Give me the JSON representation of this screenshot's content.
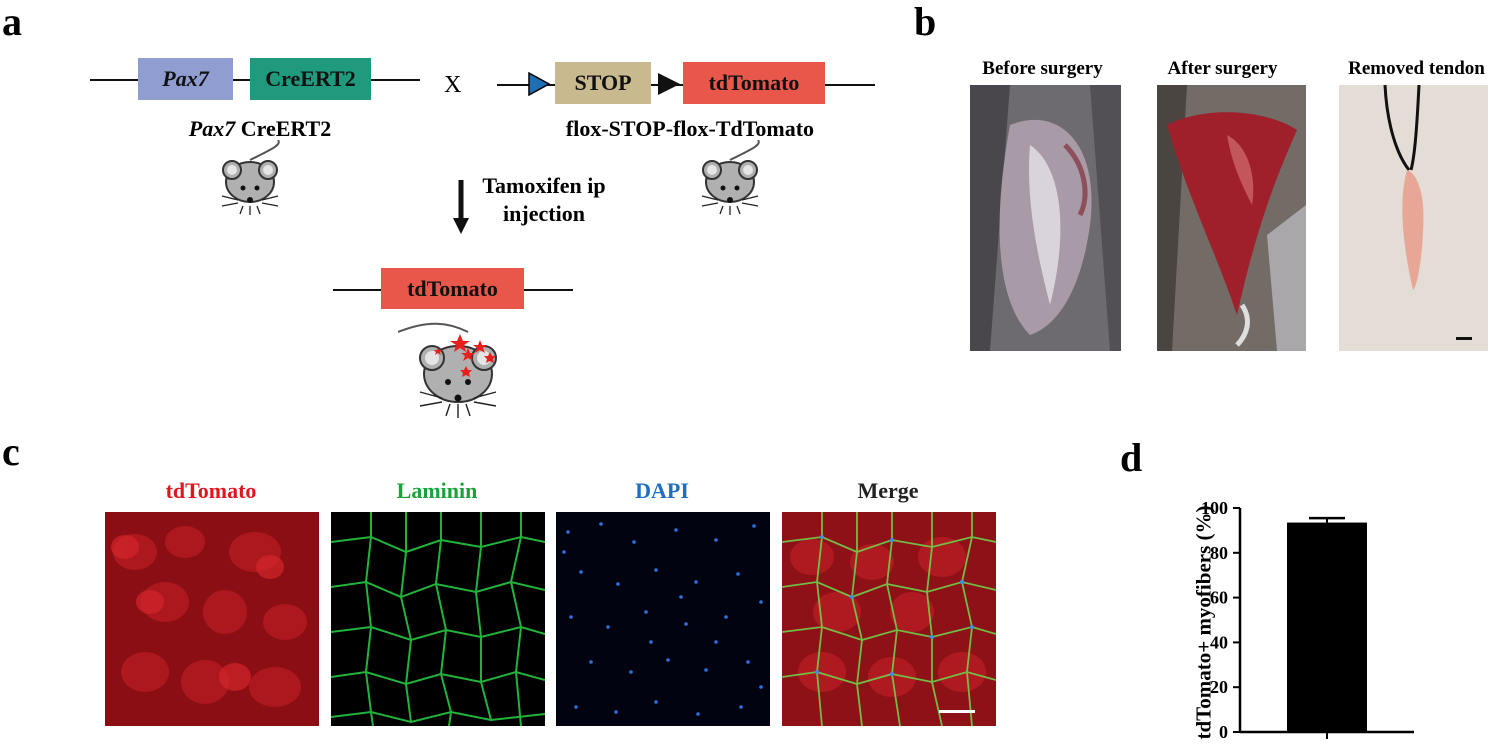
{
  "panels": {
    "a": "a",
    "b": "b",
    "c": "c",
    "d": "d"
  },
  "panel_a": {
    "left_construct": {
      "box1": "Pax7",
      "box2": "CreERT2",
      "caption_italic": "Pax7",
      "caption_rest": " CreERT2"
    },
    "cross_symbol": "X",
    "right_construct": {
      "box1": "STOP",
      "box2": "tdTomato",
      "caption": "flox-STOP-flox-TdTomato"
    },
    "arrow_label_line1": "Tamoxifen ip",
    "arrow_label_line2": "injection",
    "result_construct": {
      "box": "tdTomato"
    },
    "colors": {
      "pax7": "#8f9dd0",
      "creert2": "#1f9a7d",
      "stop": "#c9b98f",
      "tdtomato": "#e8574a",
      "loxp": "#1f6fb5"
    }
  },
  "panel_b": {
    "photos": [
      {
        "label": "Before surgery"
      },
      {
        "label": "After surgery"
      },
      {
        "label": "Removed tendon"
      }
    ]
  },
  "panel_c": {
    "channels": [
      {
        "label": "tdTomato",
        "color": "#e0161f"
      },
      {
        "label": "Laminin",
        "color": "#1aa33a"
      },
      {
        "label": "DAPI",
        "color": "#1f6fc0"
      },
      {
        "label": "Merge",
        "color": "#222222"
      }
    ]
  },
  "chart_data": {
    "type": "bar",
    "categories": [
      ""
    ],
    "values": [
      93.5
    ],
    "error": [
      2
    ],
    "ylabel": "tdTomato+ myofibers (%)",
    "ylim": [
      0,
      100
    ],
    "yticks": [
      0,
      20,
      40,
      60,
      80,
      100
    ],
    "bar_color": "#000000"
  }
}
